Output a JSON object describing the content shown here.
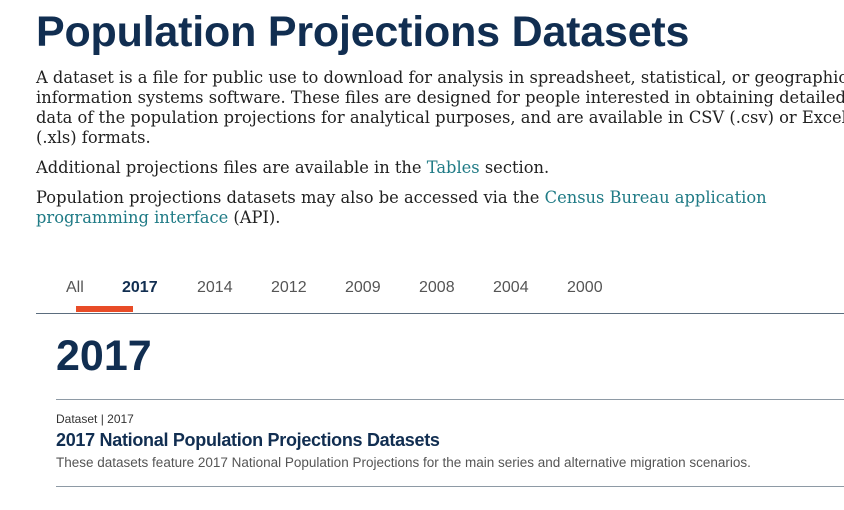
{
  "header": {
    "title": "Population Projections Datasets"
  },
  "intro": {
    "lines": [
      "A dataset is a file for public use to download for analysis in spreadsheet, statistical, or geographic",
      "information systems software. These files are designed for people interested in obtaining detailed",
      "data of the population projections for analytical purposes, and are available in CSV (.csv) or Excel",
      "(.xls) formats."
    ],
    "additional_prefix": "Additional projections files are available in the ",
    "additional_link": "Tables",
    "additional_suffix": " section.",
    "api_prefix": "Population projections datasets may also be accessed via the ",
    "api_link": "Census Bureau application programming interface",
    "api_suffix": " (API)."
  },
  "tabs": [
    {
      "label": "All"
    },
    {
      "label": "2017"
    },
    {
      "label": "2014"
    },
    {
      "label": "2012"
    },
    {
      "label": "2009"
    },
    {
      "label": "2008"
    },
    {
      "label": "2004"
    },
    {
      "label": "2000"
    }
  ],
  "active_tab": "2017",
  "section": {
    "heading": "2017",
    "items": [
      {
        "meta": "Dataset | 2017",
        "title": "2017 National Population Projections Datasets",
        "description": "These datasets feature 2017 National Population Projections for the main series and alternative migration scenarios."
      }
    ]
  },
  "colors": {
    "heading": "#112e51",
    "link": "#207b86",
    "accent": "#e84c27"
  }
}
